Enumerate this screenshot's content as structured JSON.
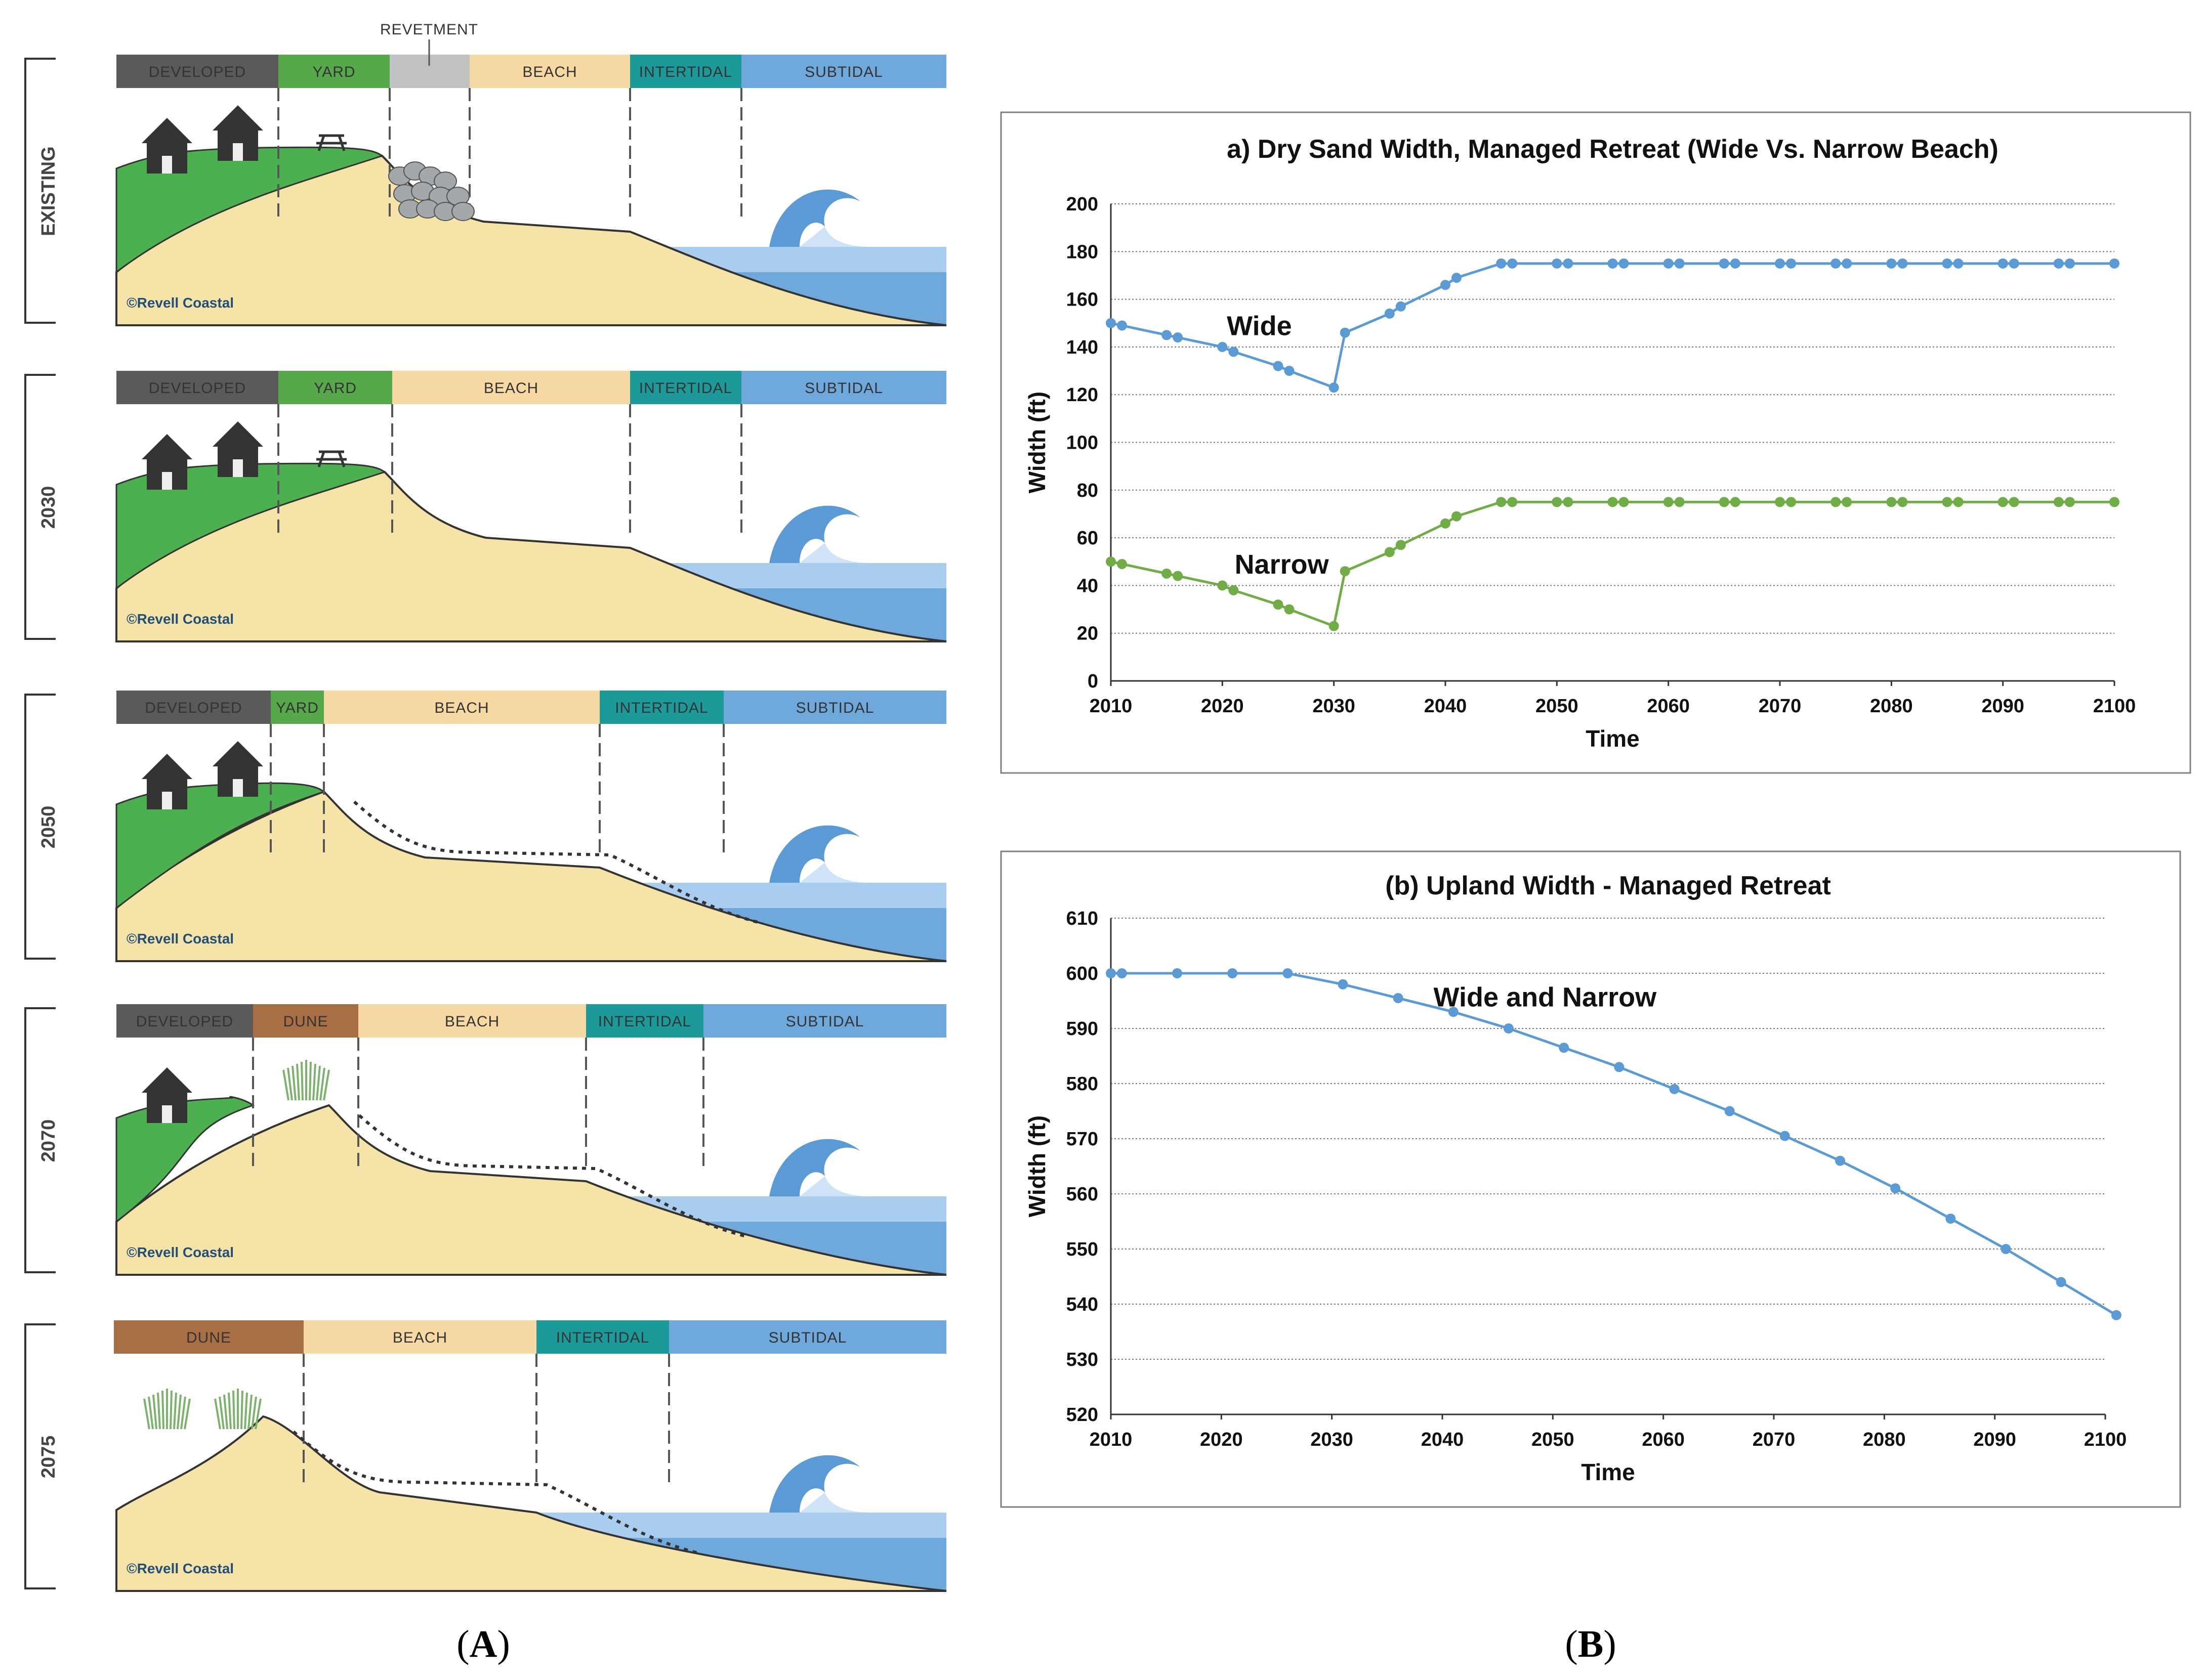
{
  "panel_labels": {
    "a": "A",
    "b": "B"
  },
  "illustration": {
    "revetment_label": "REVETMENT",
    "logo_text": "©Revell Coastal",
    "rows": [
      {
        "label": "EXISTING",
        "zones": [
          "DEVELOPED",
          "YARD",
          "",
          "BEACH",
          "INTERTIDAL",
          "SUBTIDAL"
        ]
      },
      {
        "label": "2030",
        "zones": [
          "DEVELOPED",
          "YARD",
          "BEACH",
          "INTERTIDAL",
          "SUBTIDAL"
        ]
      },
      {
        "label": "2050",
        "zones": [
          "DEVELOPED",
          "YARD",
          "BEACH",
          "INTERTIDAL",
          "SUBTIDAL"
        ]
      },
      {
        "label": "2070",
        "zones": [
          "DEVELOPED",
          "DUNE",
          "BEACH",
          "INTERTIDAL",
          "SUBTIDAL"
        ]
      },
      {
        "label": "2075",
        "zones": [
          "DUNE",
          "BEACH",
          "INTERTIDAL",
          "SUBTIDAL"
        ]
      }
    ],
    "zone_colors": {
      "DEVELOPED": "#5a5a5a",
      "YARD": "#56a84a",
      "REVETMENT": "#bfc1c3",
      "BEACH": "#f6d9a3",
      "INTERTIDAL": "#1c9a9a",
      "SUBTIDAL": "#6fa9dc",
      "DUNE": "#a86f45"
    }
  },
  "chart_data": [
    {
      "type": "line",
      "title": "a) Dry Sand Width, Managed Retreat (Wide Vs. Narrow Beach)",
      "xlabel": "Time",
      "ylabel": "Width (ft)",
      "xlim": [
        2010,
        2100
      ],
      "ylim": [
        0,
        200
      ],
      "xticks": [
        2010,
        2020,
        2030,
        2040,
        2050,
        2060,
        2070,
        2080,
        2090,
        2100
      ],
      "yticks": [
        0,
        20,
        40,
        60,
        80,
        100,
        120,
        140,
        160,
        180,
        200
      ],
      "x": [
        2010,
        2011,
        2015,
        2016,
        2020,
        2021,
        2025,
        2026,
        2030,
        2031,
        2035,
        2036,
        2040,
        2041,
        2045,
        2046,
        2050,
        2051,
        2055,
        2056,
        2060,
        2061,
        2065,
        2066,
        2070,
        2071,
        2075,
        2076,
        2080,
        2081,
        2085,
        2086,
        2090,
        2091,
        2095,
        2096,
        2100
      ],
      "series": [
        {
          "name": "Wide",
          "color": "#5b9bd5",
          "values": [
            150,
            149,
            145,
            144,
            140,
            138,
            132,
            130,
            123,
            146,
            154,
            157,
            166,
            169,
            175,
            175,
            175,
            175,
            175,
            175,
            175,
            175,
            175,
            175,
            175,
            175,
            175,
            175,
            175,
            175,
            175,
            175,
            175,
            175,
            175,
            175,
            175
          ]
        },
        {
          "name": "Narrow",
          "color": "#70ad47",
          "values": [
            50,
            49,
            45,
            44,
            40,
            38,
            32,
            30,
            23,
            46,
            54,
            57,
            66,
            69,
            75,
            75,
            75,
            75,
            75,
            75,
            75,
            75,
            75,
            75,
            75,
            75,
            75,
            75,
            75,
            75,
            75,
            75,
            75,
            75,
            75,
            75,
            75
          ]
        }
      ]
    },
    {
      "type": "line",
      "title": "(b) Upland Width - Managed Retreat",
      "xlabel": "Time",
      "ylabel": "Width (ft)",
      "xlim": [
        2010,
        2100
      ],
      "ylim": [
        520,
        610
      ],
      "xticks": [
        2010,
        2020,
        2030,
        2040,
        2050,
        2060,
        2070,
        2080,
        2090,
        2100
      ],
      "yticks": [
        520,
        530,
        540,
        550,
        560,
        570,
        580,
        590,
        600,
        610
      ],
      "x": [
        2010,
        2011,
        2016,
        2021,
        2026,
        2031,
        2036,
        2041,
        2046,
        2051,
        2056,
        2061,
        2066,
        2071,
        2076,
        2081,
        2086,
        2091,
        2096,
        2101
      ],
      "series": [
        {
          "name": "Wide and Narrow",
          "color": "#5b9bd5",
          "values": [
            600,
            600,
            600,
            600,
            600,
            598,
            595.5,
            593,
            590,
            586.5,
            583,
            579,
            575,
            570.5,
            566,
            561,
            555.5,
            550,
            544,
            538
          ]
        }
      ]
    }
  ]
}
